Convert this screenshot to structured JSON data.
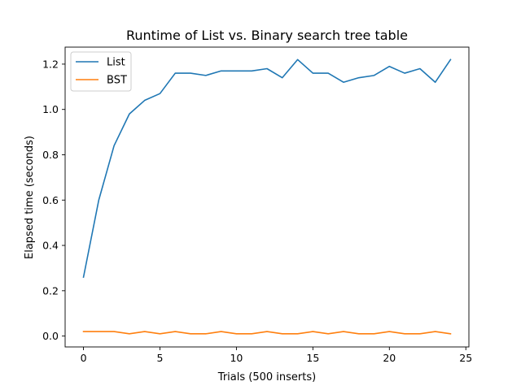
{
  "chart_data": {
    "type": "line",
    "title": "Runtime of List vs. Binary search tree table",
    "xlabel": "Trials (500 inserts)",
    "ylabel": "Elapsed time (seconds)",
    "xlim": [
      -1.2,
      25.2
    ],
    "ylim": [
      -0.048,
      1.275
    ],
    "xticks": [
      0,
      5,
      10,
      15,
      20,
      25
    ],
    "xtick_labels": [
      "0",
      "5",
      "10",
      "15",
      "20",
      "25"
    ],
    "yticks": [
      0.0,
      0.2,
      0.4,
      0.6,
      0.8,
      1.0,
      1.2
    ],
    "ytick_labels": [
      "0.0",
      "0.2",
      "0.4",
      "0.6",
      "0.8",
      "1.0",
      "1.2"
    ],
    "grid": false,
    "legend_position": "top-left",
    "x": [
      0,
      1,
      2,
      3,
      4,
      5,
      6,
      7,
      8,
      9,
      10,
      11,
      12,
      13,
      14,
      15,
      16,
      17,
      18,
      19,
      20,
      21,
      22,
      23,
      24
    ],
    "series": [
      {
        "name": "List",
        "color": "#1f77b4",
        "values": [
          0.26,
          0.6,
          0.84,
          0.98,
          1.04,
          1.07,
          1.16,
          1.16,
          1.15,
          1.17,
          1.17,
          1.17,
          1.18,
          1.14,
          1.22,
          1.16,
          1.16,
          1.12,
          1.14,
          1.15,
          1.19,
          1.16,
          1.18,
          1.12,
          1.22
        ]
      },
      {
        "name": "BST",
        "color": "#ff7f0e",
        "values": [
          0.02,
          0.02,
          0.02,
          0.01,
          0.02,
          0.01,
          0.02,
          0.01,
          0.01,
          0.02,
          0.01,
          0.01,
          0.02,
          0.01,
          0.01,
          0.02,
          0.01,
          0.02,
          0.01,
          0.01,
          0.02,
          0.01,
          0.01,
          0.02,
          0.01
        ]
      }
    ]
  }
}
